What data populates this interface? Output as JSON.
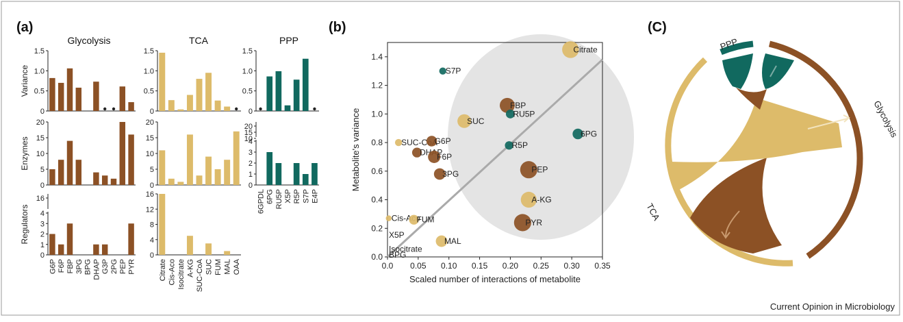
{
  "panel_a": {
    "label": "(a)",
    "colors": {
      "glycolysis": "#8c5125",
      "tca": "#ddbb6a",
      "ppp": "#11695f"
    },
    "rows": {
      "variance": {
        "title": "Variance"
      },
      "enzymes": {
        "title": "Enzymes"
      },
      "regulators": {
        "title": "Regulators"
      }
    }
  },
  "panel_b": {
    "label": "(b)"
  },
  "panel_c": {
    "label": "(C)",
    "arc_labels": {
      "ppp": "PPP",
      "glycolysis": "Glycolysis",
      "tca": "TCA"
    }
  },
  "credit": "Current Opinion in Microbiology",
  "chart_data": [
    {
      "type": "bar",
      "title": "Glycolysis",
      "categories": [
        "G6P",
        "F6P",
        "FBP",
        "3PG",
        "BPG",
        "DHAP",
        "G3P",
        "2PG",
        "PEP",
        "PYR"
      ],
      "series": [
        {
          "name": "Variance",
          "values": [
            0.82,
            0.7,
            1.06,
            0.58,
            null,
            0.73,
            null,
            null,
            0.61,
            0.22
          ],
          "ylim": [
            0,
            1.5
          ],
          "yticks": [
            "0",
            "0.5",
            "1.0",
            "1.5"
          ],
          "markers": [
            "G3P",
            "2PG"
          ]
        },
        {
          "name": "Enzymes",
          "values": [
            5,
            8,
            14,
            8,
            0,
            4,
            3,
            2,
            20,
            16
          ],
          "ylim": [
            0,
            20
          ],
          "yticks": [
            "0",
            "5",
            "10",
            "15",
            "20"
          ]
        },
        {
          "name": "Regulators",
          "values": [
            2,
            1,
            3,
            0,
            0,
            1,
            1,
            0,
            0,
            3
          ],
          "yticks": [
            "0",
            "1",
            "2",
            "3",
            "4",
            "16"
          ],
          "axis_break": true
        }
      ]
    },
    {
      "type": "bar",
      "title": "TCA",
      "categories": [
        "Citrate",
        "Cis-Aco",
        "Isocitrate",
        "A-KG",
        "SUC-CoA",
        "SUC",
        "FUM",
        "MAL",
        "OAA"
      ],
      "series": [
        {
          "name": "Variance",
          "values": [
            1.45,
            0.27,
            0.04,
            0.4,
            0.8,
            0.95,
            0.26,
            0.11,
            null
          ],
          "ylim": [
            0,
            1.5
          ],
          "yticks": [
            "0",
            "0.5",
            "1.0",
            "1.5"
          ],
          "markers": [
            "OAA"
          ]
        },
        {
          "name": "Enzymes",
          "values": [
            11,
            2,
            1,
            16,
            3,
            9,
            5,
            8,
            17
          ],
          "ylim": [
            0,
            20
          ],
          "yticks": [
            "0",
            "5",
            "10",
            "15",
            "20"
          ]
        },
        {
          "name": "Regulators",
          "values": [
            16,
            0,
            0,
            5,
            0,
            3,
            0,
            1,
            0
          ],
          "ylim": [
            0,
            16
          ],
          "yticks": [
            "0",
            "4",
            "8",
            "12",
            "16"
          ]
        }
      ]
    },
    {
      "type": "bar",
      "title": "PPP",
      "categories": [
        "6GPDL",
        "6PG",
        "RU5P",
        "X5P",
        "R5P",
        "S7P",
        "E4P"
      ],
      "series": [
        {
          "name": "Variance",
          "values": [
            null,
            0.86,
            0.99,
            0.14,
            0.78,
            1.3,
            null
          ],
          "ylim": [
            0,
            1.5
          ],
          "yticks": [
            "0",
            "0.5",
            "1.0",
            "1.5"
          ],
          "markers": [
            "6GPDL",
            "E4P"
          ]
        },
        {
          "name": "Enzymes",
          "values": [
            0,
            3,
            2,
            0,
            2,
            1,
            2
          ],
          "yticks": [
            "0",
            "1",
            "2",
            "3",
            "4",
            "10",
            "15",
            "20"
          ],
          "axis_break": true
        }
      ]
    },
    {
      "type": "scatter",
      "xlabel": "Scaled number of interactions of metabolite",
      "ylabel": "Metabolite's variance",
      "xlim": [
        0,
        0.35
      ],
      "ylim": [
        0,
        1.5
      ],
      "xticks": [
        "0.0",
        "0.05",
        "0.10",
        "0.15",
        "0.20",
        "0.25",
        "0.30",
        "0.35"
      ],
      "yticks": [
        "0.0",
        "0.2",
        "0.4",
        "0.6",
        "0.8",
        "1.0",
        "1.2",
        "1.4"
      ],
      "trend_line": {
        "x": [
          0,
          0.35
        ],
        "y": [
          0.0,
          1.38
        ]
      },
      "points": [
        {
          "label": "Citrate",
          "x": 0.298,
          "y": 1.45,
          "group": "tca",
          "size": 3.2
        },
        {
          "label": "S7P",
          "x": 0.09,
          "y": 1.3,
          "group": "ppp",
          "size": 1.0
        },
        {
          "label": "FBP",
          "x": 0.195,
          "y": 1.06,
          "group": "glycolysis",
          "size": 2.8
        },
        {
          "label": "RU5P",
          "x": 0.2,
          "y": 1.0,
          "group": "ppp",
          "size": 1.4
        },
        {
          "label": "SUC",
          "x": 0.125,
          "y": 0.95,
          "group": "tca",
          "size": 2.5
        },
        {
          "label": "6PG",
          "x": 0.31,
          "y": 0.86,
          "group": "ppp",
          "size": 1.8
        },
        {
          "label": "SUC-CoA",
          "x": 0.018,
          "y": 0.8,
          "group": "tca",
          "size": 1.0
        },
        {
          "label": "G6P",
          "x": 0.072,
          "y": 0.81,
          "group": "glycolysis",
          "size": 1.8
        },
        {
          "label": "R5P",
          "x": 0.198,
          "y": 0.78,
          "group": "ppp",
          "size": 1.3
        },
        {
          "label": "DHAP",
          "x": 0.048,
          "y": 0.73,
          "group": "glycolysis",
          "size": 1.6
        },
        {
          "label": "F6P",
          "x": 0.076,
          "y": 0.7,
          "group": "glycolysis",
          "size": 2.2
        },
        {
          "label": "PEP",
          "x": 0.23,
          "y": 0.61,
          "group": "glycolysis",
          "size": 3.3
        },
        {
          "label": "3PG",
          "x": 0.085,
          "y": 0.58,
          "group": "glycolysis",
          "size": 2.0
        },
        {
          "label": "A-KG",
          "x": 0.23,
          "y": 0.4,
          "group": "tca",
          "size": 3.0
        },
        {
          "label": "Cis-Aco",
          "x": 0.002,
          "y": 0.27,
          "group": "tca",
          "size": 0.7
        },
        {
          "label": "FUM",
          "x": 0.043,
          "y": 0.26,
          "group": "tca",
          "size": 1.6
        },
        {
          "label": "PYR",
          "x": 0.22,
          "y": 0.24,
          "group": "glycolysis",
          "size": 3.3
        },
        {
          "label": "MAL",
          "x": 0.088,
          "y": 0.11,
          "group": "tca",
          "size": 2.0
        },
        {
          "label": "X5P",
          "x": 0.0,
          "y": 0.14,
          "group": "ppp",
          "size": 0.0
        },
        {
          "label": "Isocitrate",
          "x": 0.0,
          "y": 0.04,
          "group": "tca",
          "size": 0.0
        },
        {
          "label": "BPG",
          "x": 0.0,
          "y": 0.0,
          "group": "glycolysis",
          "size": 0.0
        }
      ]
    }
  ]
}
